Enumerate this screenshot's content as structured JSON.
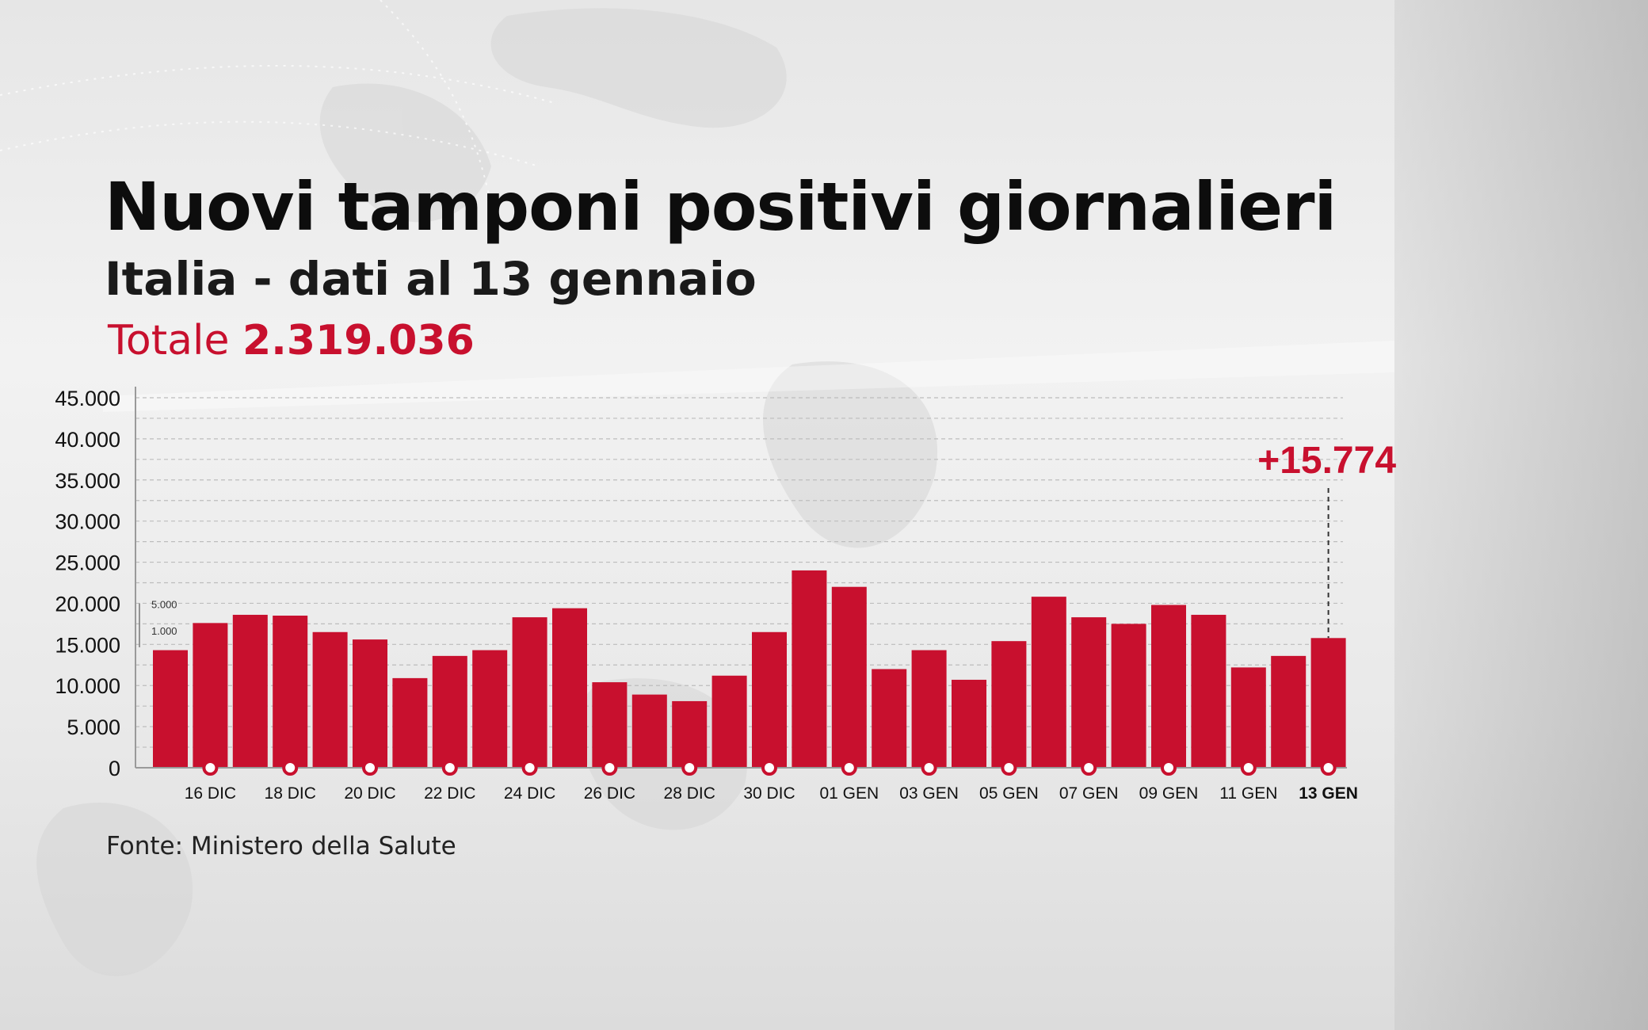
{
  "header": {
    "title": "Nuovi tamponi positivi giornalieri",
    "subtitle": "Italia - dati al 13 gennaio",
    "total_label": "Totale",
    "total_value": "2.319.036"
  },
  "source": "Fonte: Ministero della Salute",
  "colors": {
    "bar": "#c8102e",
    "accent": "#c8102e",
    "text": "#111111",
    "grid": "#bdbdbd"
  },
  "chart_data": {
    "type": "bar",
    "title": "Nuovi tamponi positivi giornalieri",
    "xlabel": "",
    "ylabel": "",
    "ylim": [
      0,
      45000
    ],
    "grid": true,
    "yticks": [
      0,
      5000,
      10000,
      15000,
      20000,
      25000,
      30000,
      35000,
      40000,
      45000
    ],
    "ytick_labels": [
      "0",
      "5.000",
      "10.000",
      "15.000",
      "20.000",
      "25.000",
      "30.000",
      "35.000",
      "40.000",
      "45.000"
    ],
    "categories": [
      "15 DIC",
      "16 DIC",
      "17 DIC",
      "18 DIC",
      "19 DIC",
      "20 DIC",
      "21 DIC",
      "22 DIC",
      "23 DIC",
      "24 DIC",
      "25 DIC",
      "26 DIC",
      "27 DIC",
      "28 DIC",
      "29 DIC",
      "30 DIC",
      "31 DIC",
      "01 GEN",
      "02 GEN",
      "03 GEN",
      "04 GEN",
      "05 GEN",
      "06 GEN",
      "07 GEN",
      "08 GEN",
      "09 GEN",
      "10 GEN",
      "11 GEN",
      "12 GEN",
      "13 GEN"
    ],
    "visible_x_labels": [
      "16 DIC",
      "18 DIC",
      "20 DIC",
      "22 DIC",
      "24 DIC",
      "26 DIC",
      "28 DIC",
      "30 DIC",
      "01 GEN",
      "03 GEN",
      "05 GEN",
      "07 GEN",
      "09 GEN",
      "11 GEN",
      "13 GEN"
    ],
    "values": [
      14300,
      17600,
      18600,
      18500,
      16500,
      15600,
      10900,
      13600,
      14300,
      18300,
      19400,
      10400,
      8900,
      8100,
      11200,
      16500,
      24000,
      22000,
      12000,
      14300,
      10700,
      15400,
      20800,
      18300,
      17500,
      19800,
      18600,
      12200,
      13600,
      15774
    ],
    "highlight": {
      "category": "13 GEN",
      "label": "+15.774"
    },
    "inset_labels": [
      "5.000",
      "1.000"
    ]
  }
}
